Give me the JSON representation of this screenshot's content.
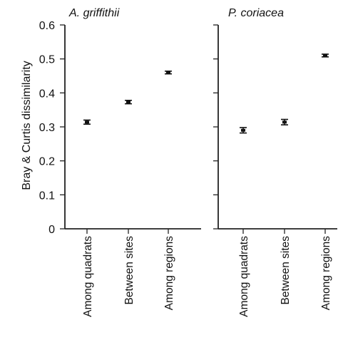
{
  "chart_data": [
    {
      "type": "scatter",
      "title": "A.  griffithii",
      "ylabel": "Bray  &  Curtis  dissimilarity",
      "xlabel": "",
      "categories": [
        "Among  quadrats",
        "Between  sites",
        "Among  regions"
      ],
      "values": [
        0.314,
        0.373,
        0.46
      ],
      "errors": [
        0.006,
        0.005,
        0.004
      ],
      "ylim": [
        0,
        0.6
      ],
      "yticks": [
        "0",
        "0.1",
        "0.2",
        "0.3",
        "0.4",
        "0.5",
        "0.6"
      ],
      "grid": false
    },
    {
      "type": "scatter",
      "title": "P.  coriacea",
      "ylabel": "",
      "xlabel": "",
      "categories": [
        "Among  quadrats",
        "Between  sites",
        "Among  regions"
      ],
      "values": [
        0.29,
        0.314,
        0.51
      ],
      "errors": [
        0.008,
        0.008,
        0.004
      ],
      "ylim": [
        0,
        0.6
      ],
      "yticks": [
        "0",
        "0.1",
        "0.2",
        "0.3",
        "0.4",
        "0.5",
        "0.6"
      ],
      "grid": false
    }
  ],
  "colors": {
    "marks": "#111111",
    "axes": "#222222",
    "background": "#ffffff"
  }
}
